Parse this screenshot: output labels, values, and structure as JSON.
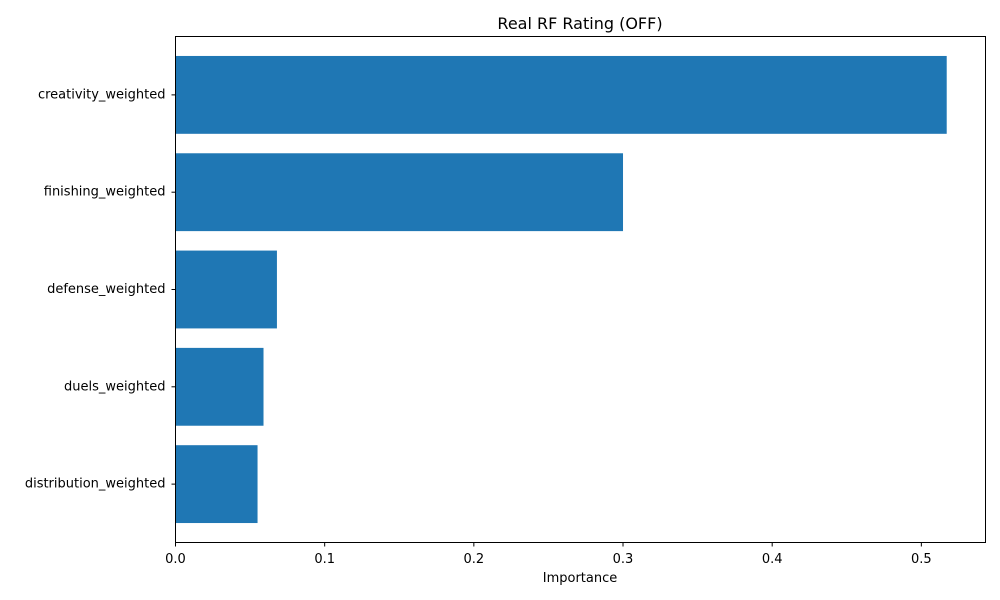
{
  "chart_data": {
    "type": "bar",
    "orientation": "horizontal",
    "title": "Real RF Rating (OFF)",
    "xlabel": "Importance",
    "ylabel": "",
    "categories": [
      "creativity_weighted",
      "finishing_weighted",
      "defense_weighted",
      "duels_weighted",
      "distribution_weighted"
    ],
    "values": [
      0.517,
      0.3,
      0.068,
      0.059,
      0.055
    ],
    "xlim": [
      0,
      0.543
    ],
    "xticks": [
      0.0,
      0.1,
      0.2,
      0.3,
      0.4,
      0.5
    ],
    "xtick_labels": [
      "0.0",
      "0.1",
      "0.2",
      "0.3",
      "0.4",
      "0.5"
    ],
    "grid": false,
    "bar_color": "#1f77b4"
  }
}
